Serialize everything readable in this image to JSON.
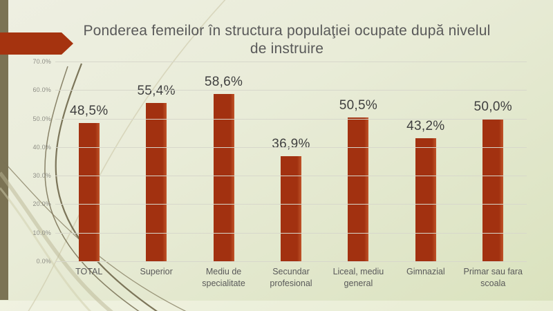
{
  "slide": {
    "title": "Ponderea femeilor în structura populaţiei ocupate după nivelul de instruire"
  },
  "chart_data": {
    "type": "bar",
    "title": "Ponderea femeilor în structura populaţiei ocupate după nivelul de instruire",
    "categories": [
      "TOTAL",
      "Superior",
      "Mediu de specialitate",
      "Secundar profesional",
      "Liceal, mediu general",
      "Gimnazial",
      "Primar sau fara scoala"
    ],
    "values": [
      48.5,
      55.4,
      58.6,
      36.9,
      50.5,
      43.2,
      50.0
    ],
    "value_labels": [
      "48,5%",
      "55,4%",
      "58,6%",
      "36,9%",
      "50,5%",
      "43,2%",
      "50,0%"
    ],
    "y_ticks": [
      "70.0%",
      "60.0%",
      "50.0%",
      "40.0%",
      "30.0%",
      "20.0%",
      "10.0%",
      "0.0%"
    ],
    "ylim": [
      0,
      70
    ],
    "xlabel": "",
    "ylabel": "",
    "grid": true,
    "legend": "none",
    "bar_color": "#a5330f"
  },
  "colors": {
    "background_top": "#eeefe2",
    "background_bottom": "#dae2bd",
    "accent_red": "#a5330f",
    "left_band_olive": "#7b7354",
    "gridline": "#d7d7cb",
    "title_text": "#595959",
    "data_label_text": "#3f3f3f",
    "tick_text": "#8d8d85"
  }
}
